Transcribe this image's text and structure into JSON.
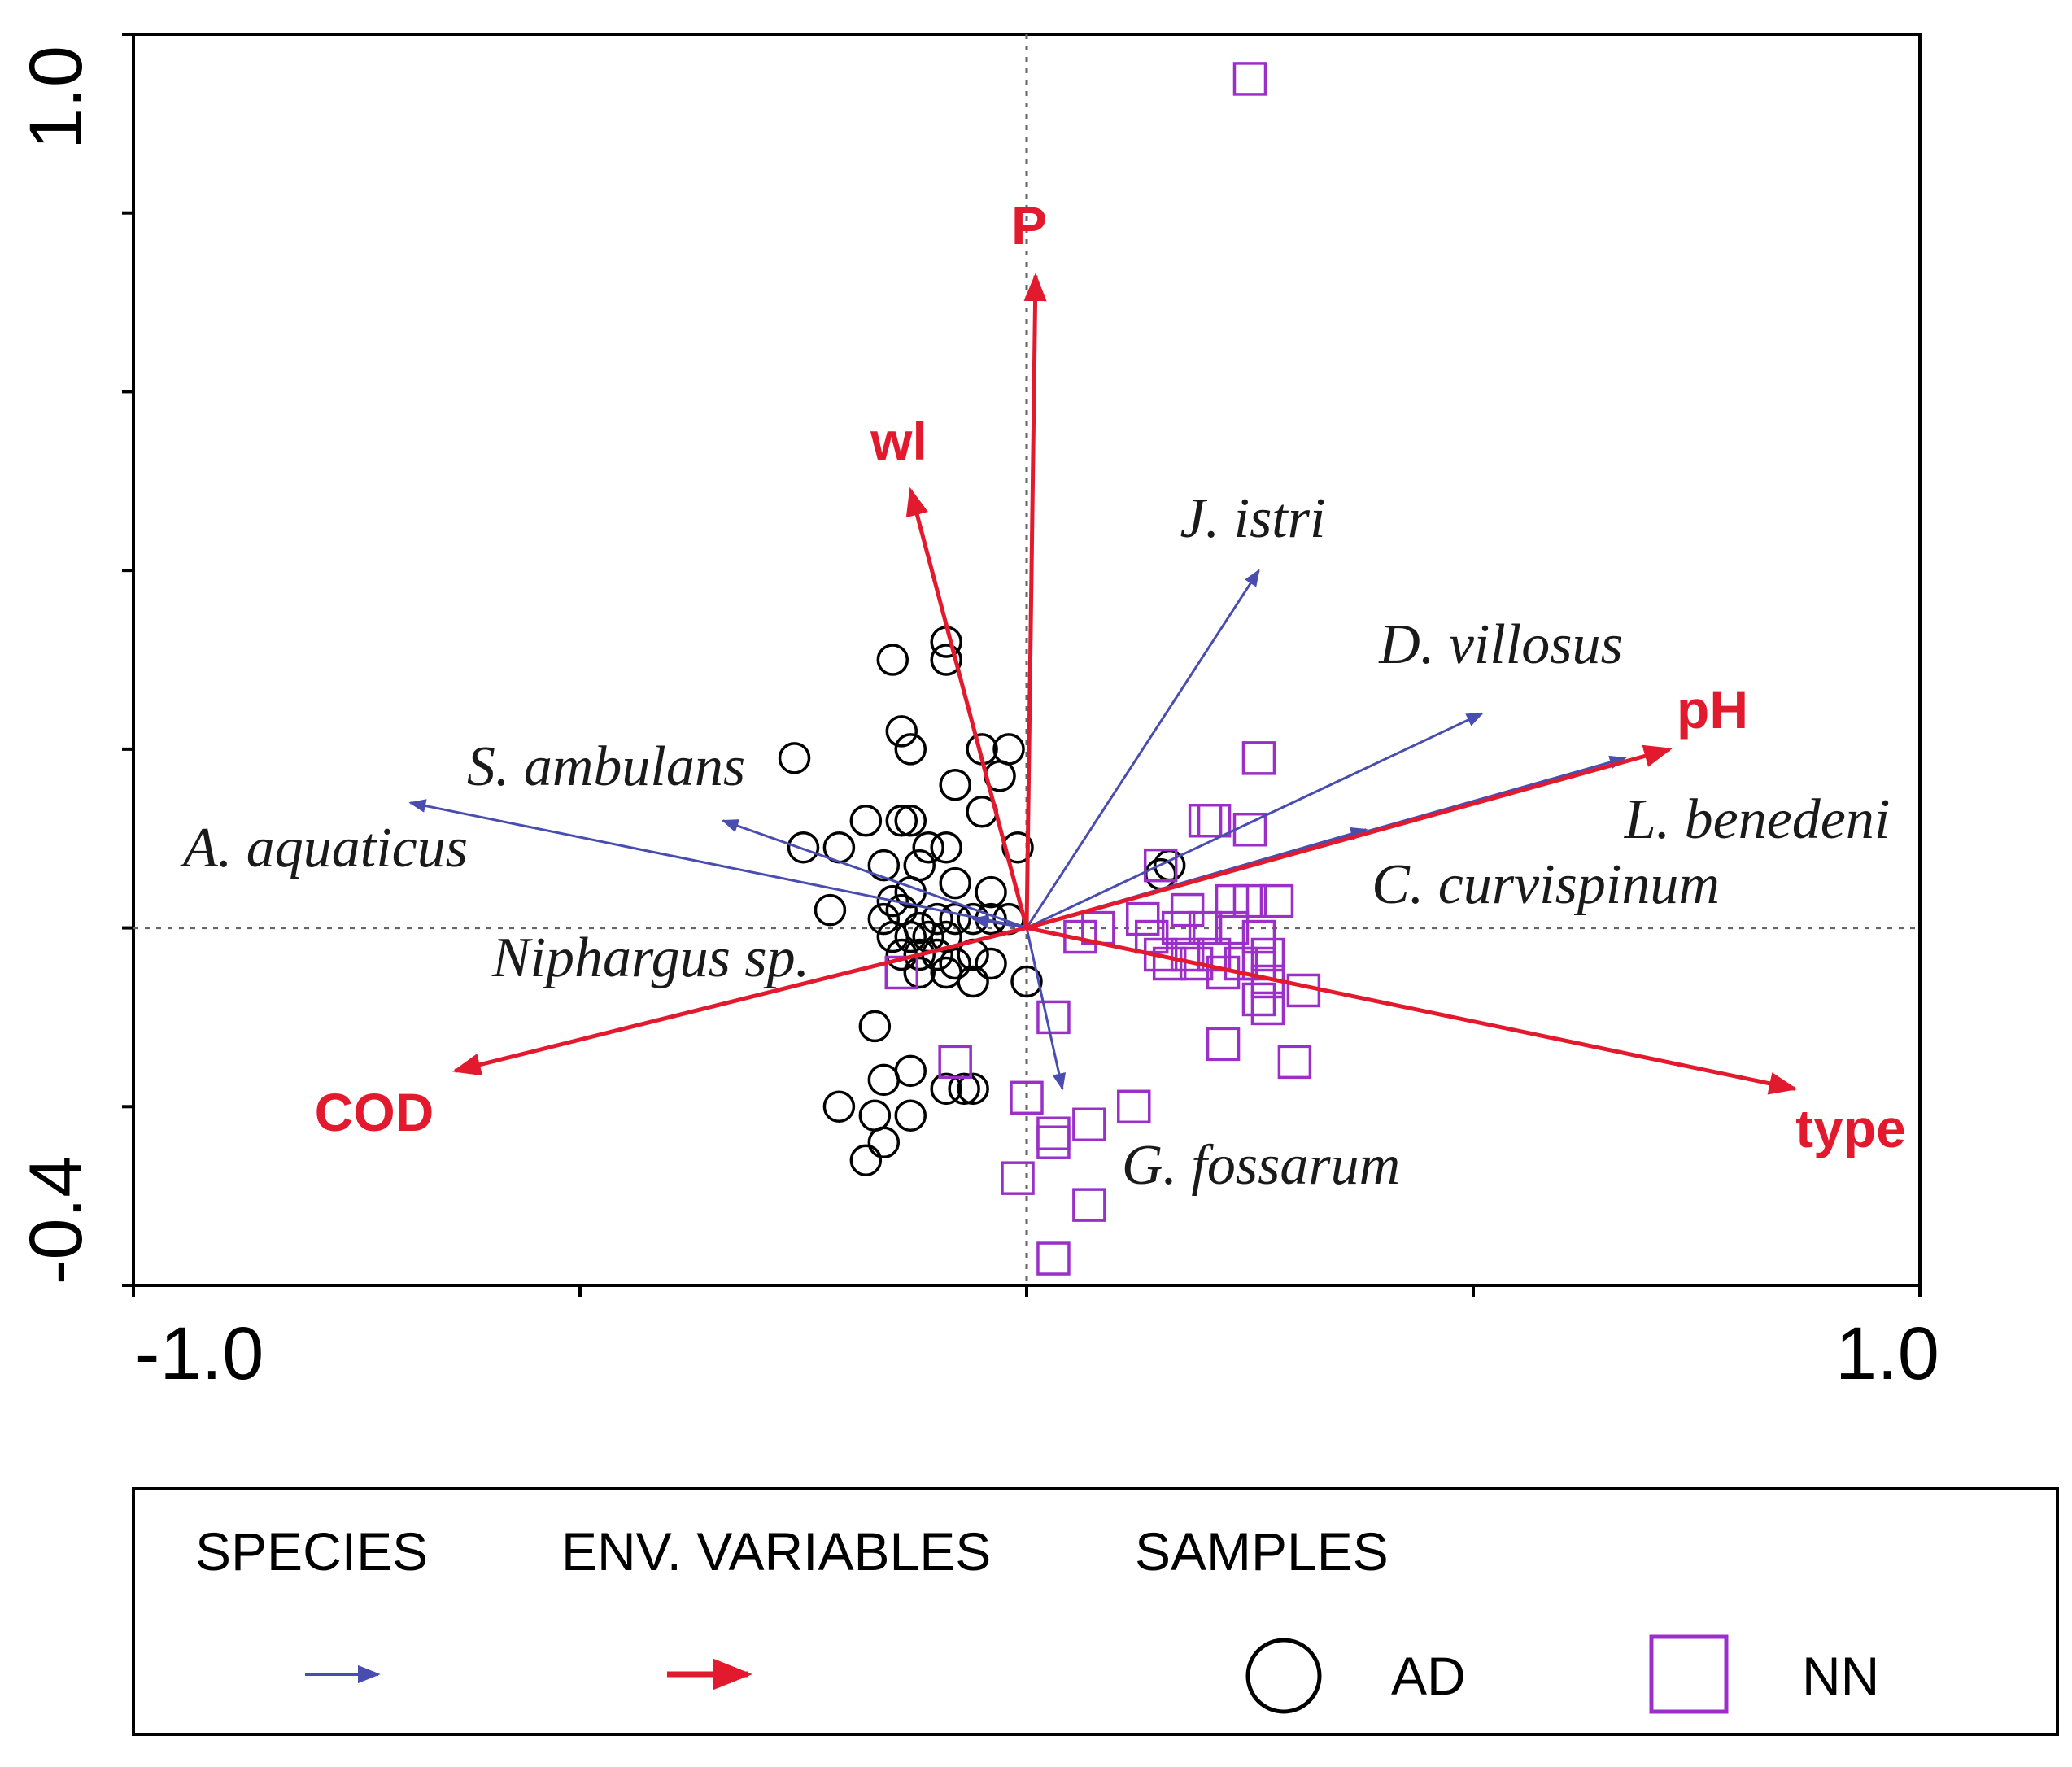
{
  "chart_data": {
    "type": "scatter",
    "title": "",
    "xlim": [
      -1.0,
      1.0
    ],
    "ylim": [
      -0.4,
      1.0
    ],
    "x_tick_labels": [
      "-1.0",
      "1.0"
    ],
    "y_tick_labels": [
      "-0.4",
      "1.0"
    ],
    "env_variables": [
      {
        "name": "P",
        "x": 0.01,
        "y": 0.73
      },
      {
        "name": "wl",
        "x": -0.13,
        "y": 0.49
      },
      {
        "name": "pH",
        "x": 0.72,
        "y": 0.2
      },
      {
        "name": "type",
        "x": 0.86,
        "y": -0.18
      },
      {
        "name": "COD",
        "x": -0.64,
        "y": -0.16
      }
    ],
    "species": [
      {
        "name": "J. istri",
        "x": 0.26,
        "y": 0.4
      },
      {
        "name": "D. villosus",
        "x": 0.51,
        "y": 0.24
      },
      {
        "name": "L. benedeni",
        "x": 0.67,
        "y": 0.19
      },
      {
        "name": "C. curvispinum",
        "x": 0.38,
        "y": 0.11
      },
      {
        "name": "S. ambulans",
        "x": -0.34,
        "y": 0.12
      },
      {
        "name": "A. aquaticus",
        "x": -0.69,
        "y": 0.14
      },
      {
        "name": "Niphargus sp.",
        "x": -0.06,
        "y": 0.01
      },
      {
        "name": "G. fossarum",
        "x": 0.04,
        "y": -0.18
      }
    ],
    "samples": [
      {
        "name": "AD",
        "shape": "circle",
        "color": "#000000",
        "points": [
          [
            -0.09,
            0.32
          ],
          [
            -0.09,
            0.3
          ],
          [
            -0.15,
            0.3
          ],
          [
            -0.14,
            0.22
          ],
          [
            -0.13,
            0.2
          ],
          [
            -0.05,
            0.2
          ],
          [
            -0.02,
            0.2
          ],
          [
            -0.26,
            0.19
          ],
          [
            -0.03,
            0.17
          ],
          [
            -0.08,
            0.16
          ],
          [
            -0.05,
            0.13
          ],
          [
            -0.18,
            0.12
          ],
          [
            -0.14,
            0.12
          ],
          [
            -0.13,
            0.12
          ],
          [
            -0.25,
            0.09
          ],
          [
            -0.21,
            0.09
          ],
          [
            -0.11,
            0.09
          ],
          [
            -0.09,
            0.09
          ],
          [
            -0.01,
            0.09
          ],
          [
            -0.16,
            0.07
          ],
          [
            -0.12,
            0.07
          ],
          [
            -0.08,
            0.05
          ],
          [
            -0.04,
            0.04
          ],
          [
            -0.15,
            0.03
          ],
          [
            -0.13,
            0.04
          ],
          [
            -0.22,
            0.02
          ],
          [
            -0.16,
            0.01
          ],
          [
            -0.14,
            0.02
          ],
          [
            -0.12,
            0.0
          ],
          [
            -0.1,
            0.01
          ],
          [
            -0.08,
            0.01
          ],
          [
            -0.06,
            0.01
          ],
          [
            -0.04,
            0.01
          ],
          [
            -0.02,
            0.01
          ],
          [
            -0.15,
            -0.01
          ],
          [
            -0.13,
            -0.01
          ],
          [
            -0.11,
            -0.01
          ],
          [
            -0.09,
            -0.01
          ],
          [
            -0.14,
            -0.03
          ],
          [
            -0.12,
            -0.03
          ],
          [
            -0.1,
            -0.03
          ],
          [
            -0.08,
            -0.04
          ],
          [
            -0.06,
            -0.03
          ],
          [
            -0.04,
            -0.04
          ],
          [
            -0.12,
            -0.05
          ],
          [
            -0.09,
            -0.05
          ],
          [
            -0.06,
            -0.06
          ],
          [
            0.0,
            -0.06
          ],
          [
            -0.17,
            -0.11
          ],
          [
            -0.16,
            -0.17
          ],
          [
            -0.13,
            -0.16
          ],
          [
            -0.09,
            -0.18
          ],
          [
            -0.07,
            -0.18
          ],
          [
            -0.06,
            -0.18
          ],
          [
            -0.21,
            -0.2
          ],
          [
            -0.17,
            -0.21
          ],
          [
            -0.13,
            -0.21
          ],
          [
            -0.16,
            -0.24
          ],
          [
            -0.18,
            -0.26
          ],
          [
            0.15,
            0.06
          ],
          [
            0.16,
            0.07
          ]
        ]
      },
      {
        "name": "NN",
        "shape": "square",
        "color": "#9b30c8",
        "points": [
          [
            0.25,
            0.95
          ],
          [
            0.26,
            0.19
          ],
          [
            0.2,
            0.12
          ],
          [
            0.21,
            0.12
          ],
          [
            0.25,
            0.11
          ],
          [
            0.15,
            0.07
          ],
          [
            0.23,
            0.03
          ],
          [
            0.25,
            0.03
          ],
          [
            0.28,
            0.03
          ],
          [
            0.13,
            0.01
          ],
          [
            0.18,
            0.02
          ],
          [
            0.08,
            0.0
          ],
          [
            0.06,
            -0.01
          ],
          [
            0.14,
            -0.01
          ],
          [
            0.17,
            0.0
          ],
          [
            0.2,
            0.0
          ],
          [
            0.23,
            0.0
          ],
          [
            0.26,
            -0.01
          ],
          [
            0.15,
            -0.03
          ],
          [
            0.18,
            -0.03
          ],
          [
            0.21,
            -0.03
          ],
          [
            0.27,
            -0.03
          ],
          [
            0.16,
            -0.04
          ],
          [
            0.19,
            -0.04
          ],
          [
            0.22,
            -0.05
          ],
          [
            0.24,
            -0.04
          ],
          [
            0.26,
            -0.04
          ],
          [
            0.27,
            -0.06
          ],
          [
            0.31,
            -0.07
          ],
          [
            0.26,
            -0.08
          ],
          [
            0.27,
            -0.09
          ],
          [
            -0.14,
            -0.05
          ],
          [
            0.03,
            -0.1
          ],
          [
            0.22,
            -0.13
          ],
          [
            0.3,
            -0.15
          ],
          [
            -0.08,
            -0.15
          ],
          [
            0.0,
            -0.19
          ],
          [
            0.12,
            -0.2
          ],
          [
            0.07,
            -0.22
          ],
          [
            0.03,
            -0.23
          ],
          [
            0.03,
            -0.24
          ],
          [
            -0.01,
            -0.28
          ],
          [
            0.07,
            -0.31
          ],
          [
            0.03,
            -0.37
          ]
        ]
      }
    ],
    "legend": {
      "position": "bottom",
      "species_title": "SPECIES",
      "env_title": "ENV. VARIABLES",
      "samples_title": "SAMPLES",
      "ad_label": "AD",
      "nn_label": "NN"
    }
  },
  "colors": {
    "env": "#e31a2d",
    "species": "#4a4db0",
    "ad": "#000000",
    "nn": "#9b30c8",
    "axis": "#000000"
  }
}
